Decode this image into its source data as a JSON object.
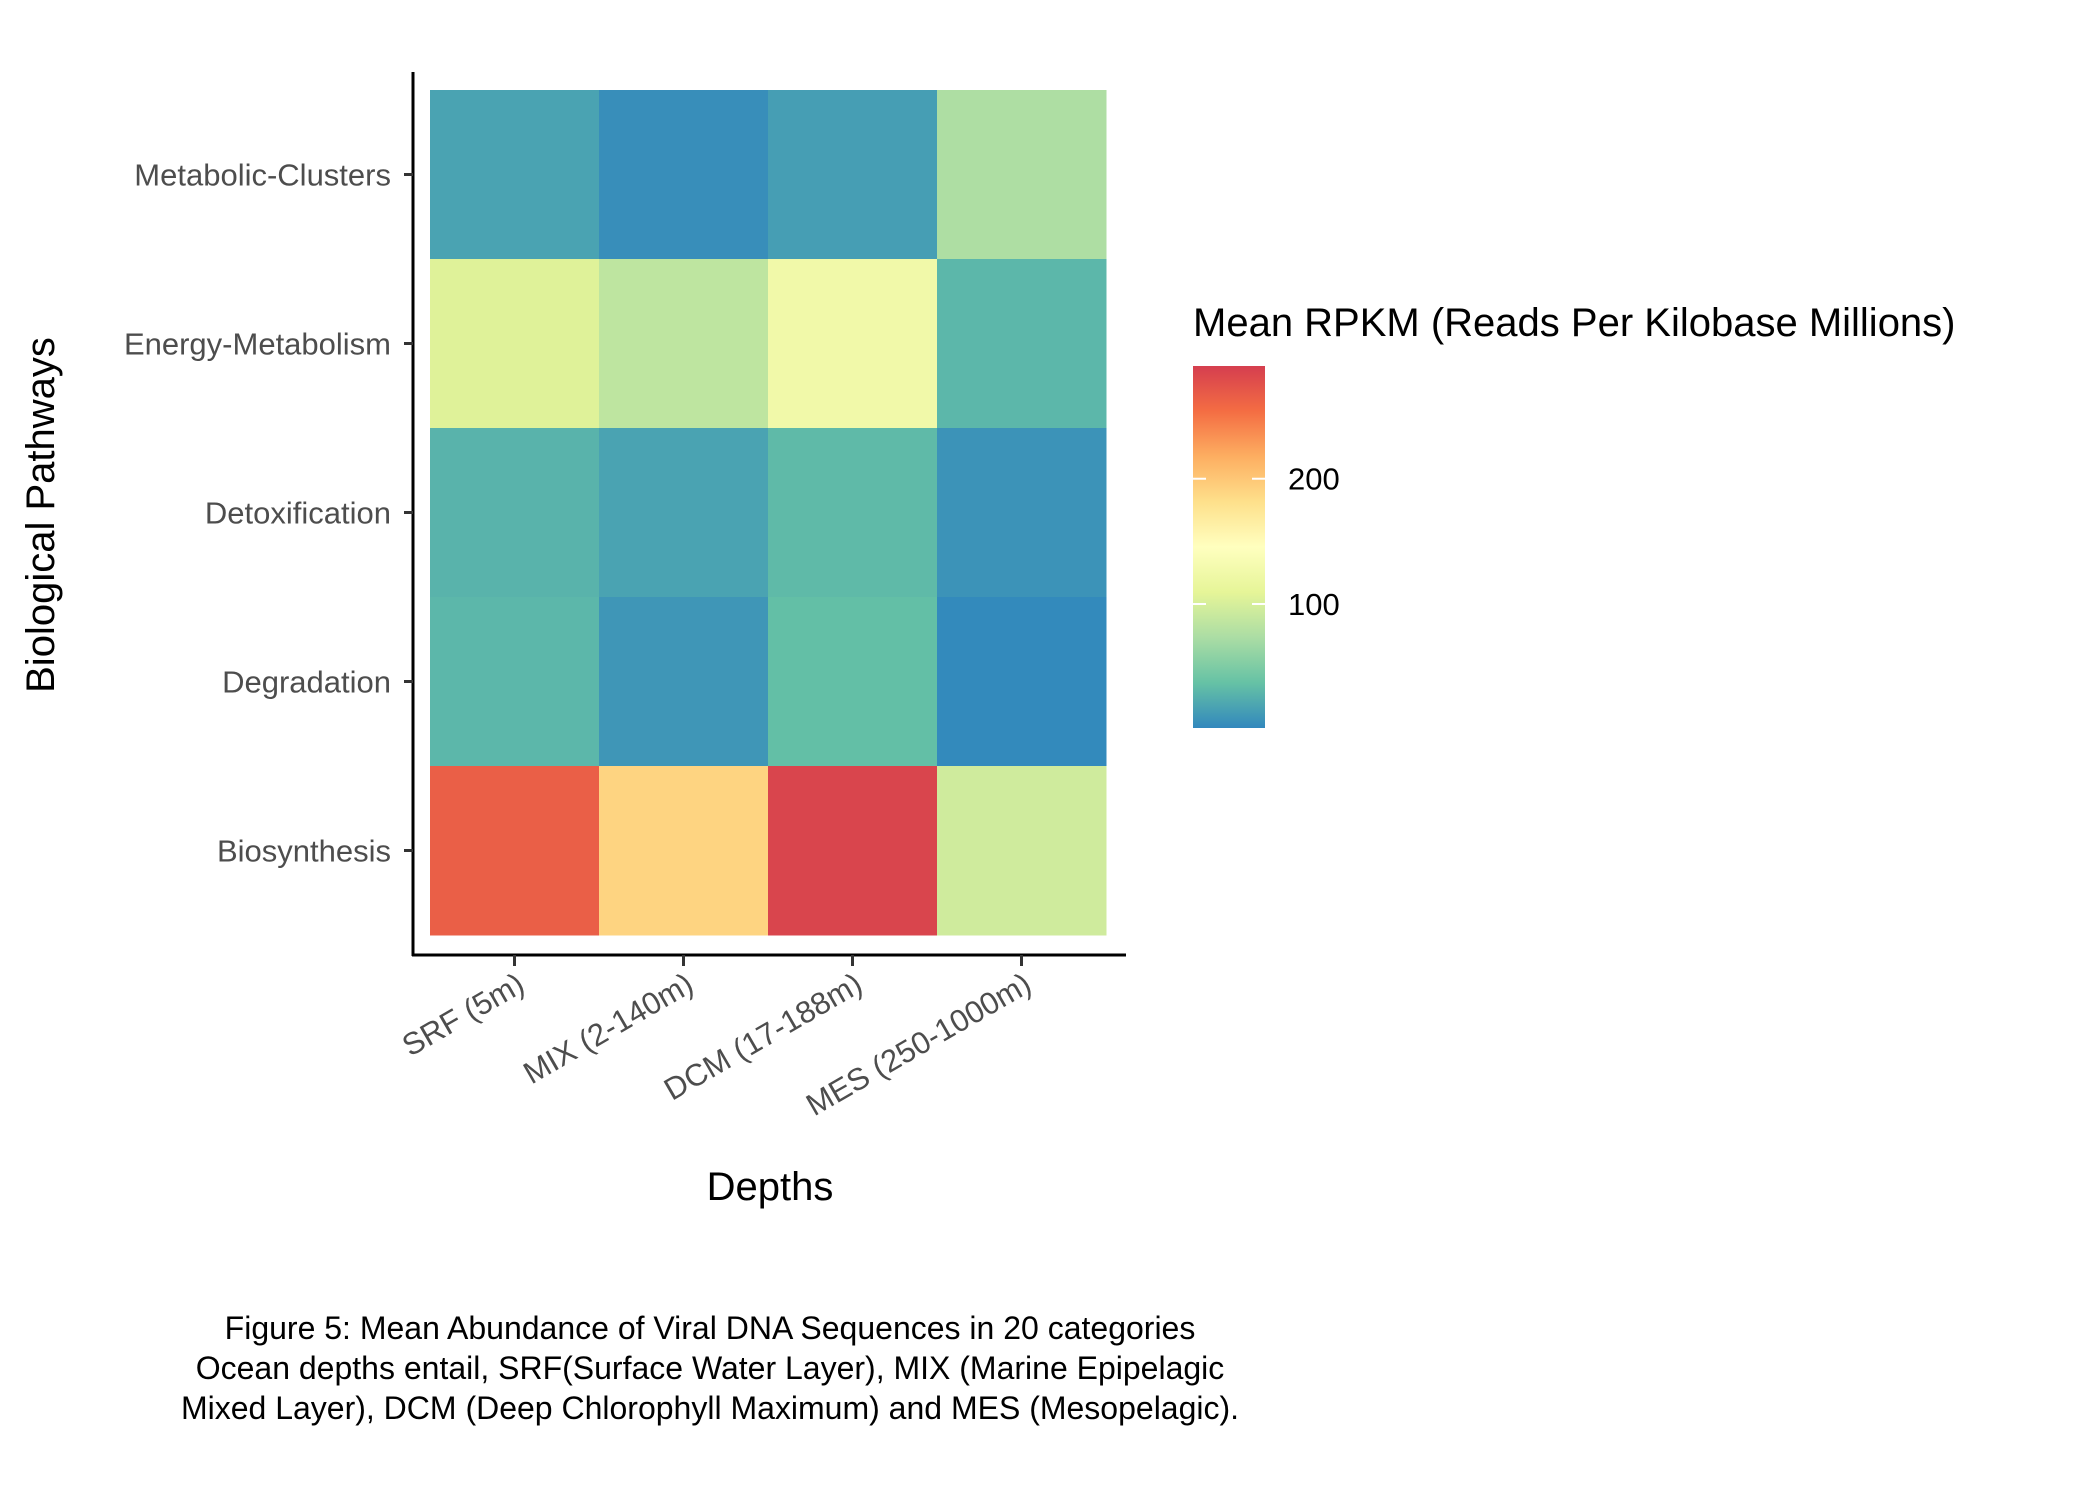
{
  "chart_data": {
    "type": "heatmap",
    "xlabel": "Depths",
    "ylabel": "Biological Pathways",
    "x_categories": [
      "SRF (5m)",
      "MIX (2-140m)",
      "DCM (17-188m)",
      "MES (250-1000m)"
    ],
    "y_categories": [
      "Biosynthesis",
      "Degradation",
      "Detoxification",
      "Energy-Metabolism",
      "Metabolic-Clusters"
    ],
    "values": {
      "Metabolic-Clusters": [
        18,
        5,
        15,
        75
      ],
      "Energy-Metabolism": [
        105,
        85,
        125,
        30
      ],
      "Detoxification": [
        28,
        18,
        32,
        8
      ],
      "Degradation": [
        30,
        10,
        35,
        2
      ],
      "Biosynthesis": [
        265,
        190,
        285,
        95
      ]
    },
    "legend": {
      "title": "Mean RPKM (Reads Per Kilobase Millions)",
      "ticks": [
        100,
        200
      ],
      "range": [
        1,
        290
      ],
      "colors": [
        "#3288bd",
        "#66c2a5",
        "#abdda4",
        "#e6f598",
        "#ffffbf",
        "#fee08b",
        "#fdae61",
        "#f46d43",
        "#d53e4f"
      ],
      "position": "right"
    }
  },
  "caption": {
    "line1": "Figure 5: Mean Abundance of Viral DNA Sequences in 20 categories",
    "line2": "Ocean depths entail, SRF(Surface Water Layer), MIX (Marine Epipelagic",
    "line3": "Mixed Layer), DCM (Deep Chlorophyll Maximum) and MES (Mesopelagic)."
  }
}
